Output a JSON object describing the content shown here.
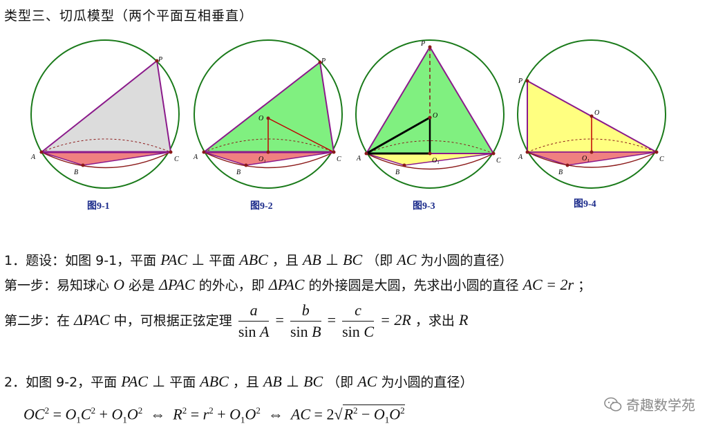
{
  "header": {
    "title": "类型三、切瓜模型（两个平面互相垂直）"
  },
  "figures": [
    {
      "caption": "图9-1",
      "labels": {
        "P": "P",
        "A": "A",
        "B": "B",
        "C": "C"
      }
    },
    {
      "caption": "图9-2",
      "labels": {
        "P": "P",
        "A": "A",
        "B": "B",
        "C": "C",
        "O": "O",
        "O1": "O₁"
      }
    },
    {
      "caption": "图9-3",
      "labels": {
        "P": "P",
        "A": "A",
        "B": "B",
        "C": "C",
        "O": "O",
        "O1": "O₁"
      }
    },
    {
      "caption": "图9-4",
      "labels": {
        "P": "P",
        "A": "A",
        "B": "B",
        "C": "C",
        "O": "O",
        "O1": "O₁"
      }
    }
  ],
  "colors": {
    "circle": "#1a7a1a",
    "fig1_fill": "#dcdcdc",
    "fig2_fill": "#80f080",
    "fig4_fill": "#ffff80",
    "base_fill": "#f08080",
    "edge": "#8b1a8b",
    "red_line": "#c00000",
    "caption": "#1a2a8a"
  },
  "text": {
    "item1_prefix": "1．题设：如图 9-1，平面",
    "item1_pac": "PAC",
    "item1_perp": "⊥",
    "item1_mid": "平面",
    "item1_abc": "ABC",
    "item1_and": "，且",
    "item1_ab": "AB",
    "item1_bc": "BC",
    "item1_paren_open": "（即",
    "item1_ac": "AC",
    "item1_paren_close": "为小圆的直径）",
    "step1_a": "第一步：易知球心",
    "step1_o": "O",
    "step1_b": "必是",
    "step1_tri": "ΔPAC",
    "step1_c": "的外心，即",
    "step1_d": "的外接圆是大圆，先求出小圆的直径",
    "step1_eq": "AC = 2r",
    "step1_end": "；",
    "step2_a": "第二步：在",
    "step2_b": "中，可根据正弦定理",
    "step2_num_a": "a",
    "step2_den_a": "A",
    "step2_num_b": "b",
    "step2_den_b": "B",
    "step2_num_c": "c",
    "step2_den_c": "C",
    "step2_sin": "sin",
    "step2_eq": "= 2R",
    "step2_end": "，求出",
    "step2_r": "R",
    "item2_prefix": "2．如图 9-2，平面",
    "item2_pac": "PAC",
    "item2_perp": "⊥",
    "item2_mid": "平面",
    "item2_abc": "ABC",
    "item2_and": "，且",
    "item2_ab": "AB",
    "item2_bc": "BC",
    "item2_paren_open": "（即",
    "item2_ac": "AC",
    "item2_paren_close": "为小圆的直径）"
  },
  "watermark": "奇趣数学苑"
}
